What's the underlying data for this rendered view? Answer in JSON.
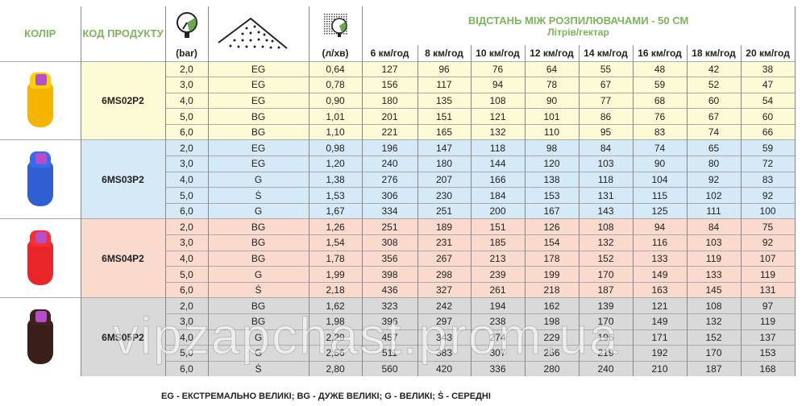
{
  "header": {
    "color": "КОЛІР",
    "code": "КОД ПРОДУКТУ",
    "pressure_icon": "pressure-gauge-icon",
    "pressure_unit": "(bar)",
    "spray_icon": "spray-pattern-icon",
    "flow_icon": "flow-rate-gauge-icon",
    "flow_unit": "(л/хв)",
    "distance_title": "ВІДСТАНЬ МІЖ РОЗПИЛЮВАЧАМИ - 50 СМ",
    "distance_sub": "Літрів/гектар",
    "speeds": [
      "6 км/год",
      "8 км/год",
      "10 км/год",
      "12 км/год",
      "14 км/год",
      "16 км/год",
      "18 км/год",
      "20 км/год"
    ]
  },
  "groups": [
    {
      "code": "6MS02P2",
      "nozzle_color": "#f5b400",
      "bg": "#fdfbd6",
      "rows": [
        [
          "2,0",
          "EG",
          "0,64",
          "127",
          "96",
          "76",
          "64",
          "55",
          "48",
          "42",
          "38"
        ],
        [
          "3,0",
          "EG",
          "0,78",
          "156",
          "117",
          "94",
          "78",
          "67",
          "59",
          "52",
          "47"
        ],
        [
          "4,0",
          "EG",
          "0,90",
          "180",
          "135",
          "108",
          "90",
          "77",
          "68",
          "60",
          "54"
        ],
        [
          "5,0",
          "BG",
          "1,01",
          "201",
          "151",
          "121",
          "101",
          "86",
          "76",
          "67",
          "60"
        ],
        [
          "6,0",
          "BG",
          "1,10",
          "221",
          "165",
          "132",
          "110",
          "95",
          "83",
          "74",
          "66"
        ]
      ]
    },
    {
      "code": "6MS03P2",
      "nozzle_color": "#2f5fd0",
      "bg": "#d6e9f6",
      "rows": [
        [
          "2,0",
          "EG",
          "0,98",
          "196",
          "147",
          "118",
          "98",
          "84",
          "74",
          "65",
          "59"
        ],
        [
          "3,0",
          "EG",
          "1,20",
          "240",
          "180",
          "144",
          "120",
          "103",
          "90",
          "80",
          "72"
        ],
        [
          "4,0",
          "G",
          "1,38",
          "276",
          "207",
          "166",
          "138",
          "118",
          "104",
          "92",
          "83"
        ],
        [
          "5,0",
          "Ṡ",
          "1,53",
          "306",
          "230",
          "184",
          "153",
          "131",
          "115",
          "102",
          "92"
        ],
        [
          "6,0",
          "G",
          "1,67",
          "334",
          "251",
          "200",
          "167",
          "143",
          "125",
          "111",
          "100"
        ]
      ]
    },
    {
      "code": "6MS04P2",
      "nozzle_color": "#e8262a",
      "bg": "#f9dacd",
      "rows": [
        [
          "2,0",
          "BG",
          "1,26",
          "251",
          "189",
          "151",
          "126",
          "108",
          "94",
          "84",
          "75"
        ],
        [
          "3,0",
          "BG",
          "1,54",
          "308",
          "231",
          "185",
          "154",
          "132",
          "116",
          "103",
          "92"
        ],
        [
          "4,0",
          "BG",
          "1,78",
          "356",
          "267",
          "213",
          "178",
          "152",
          "133",
          "119",
          "107"
        ],
        [
          "5,0",
          "G",
          "1,99",
          "398",
          "298",
          "239",
          "199",
          "170",
          "149",
          "133",
          "119"
        ],
        [
          "6,0",
          "Ṡ",
          "2,18",
          "436",
          "327",
          "261",
          "218",
          "187",
          "163",
          "145",
          "131"
        ]
      ]
    },
    {
      "code": "6MS05P2",
      "nozzle_color": "#3a1e1a",
      "bg": "#d9d9d9",
      "rows": [
        [
          "2,0",
          "BG",
          "1,62",
          "323",
          "242",
          "194",
          "162",
          "139",
          "121",
          "108",
          "97"
        ],
        [
          "3,0",
          "BG",
          "1,98",
          "396",
          "297",
          "238",
          "198",
          "170",
          "149",
          "132",
          "119"
        ],
        [
          "4,0",
          "G",
          "2,29",
          "457",
          "343",
          "274",
          "229",
          "196",
          "171",
          "152",
          "137"
        ],
        [
          "5,0",
          "G",
          "2,56",
          "511",
          "383",
          "307",
          "256",
          "219",
          "192",
          "170",
          "153"
        ],
        [
          "6,0",
          "Ṡ",
          "2,80",
          "560",
          "420",
          "336",
          "280",
          "240",
          "210",
          "187",
          "168"
        ]
      ]
    }
  ],
  "legend": "EG - ЕКСТРЕМАЛЬНО ВЕЛИКІ; BG - ДУЖЕ ВЕЛИКІ; G - ВЕЛИКІ; Ṡ - СЕРЕДНІ",
  "watermark": "vipzapchast.prom.ua"
}
